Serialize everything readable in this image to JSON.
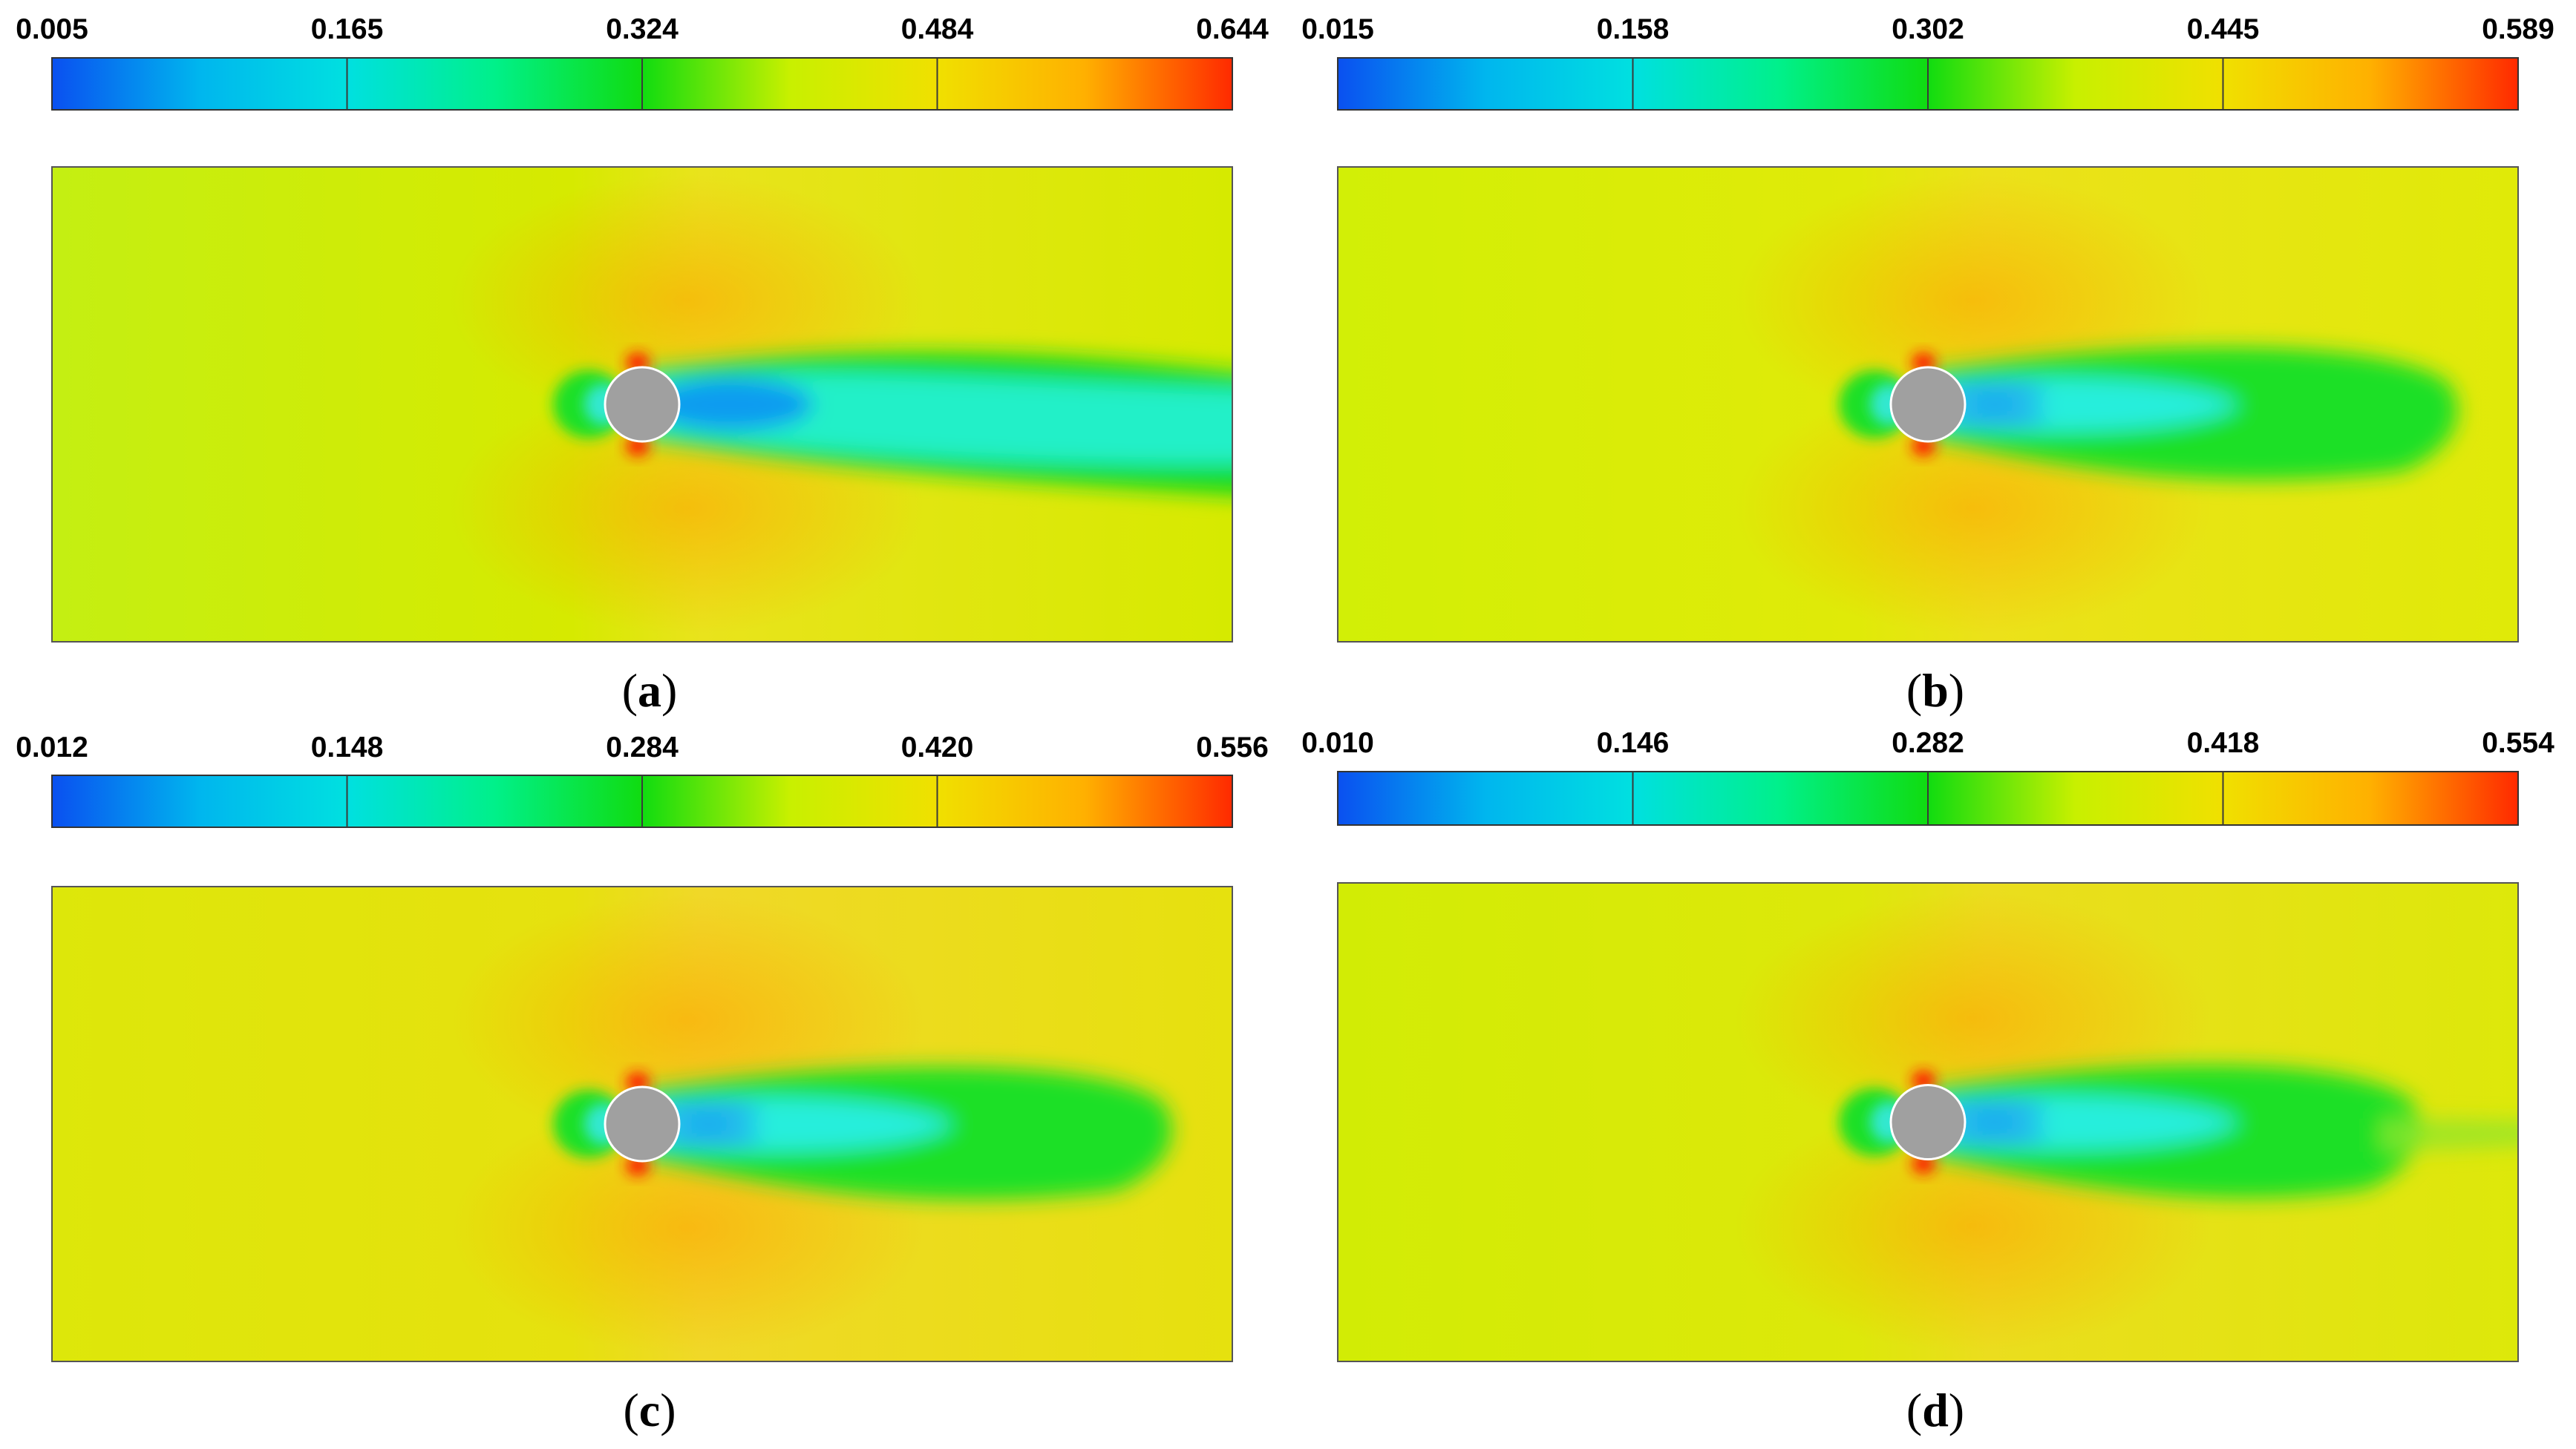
{
  "figure": {
    "panels": [
      {
        "id": "a",
        "label": "a",
        "colorbar": {
          "ticks": [
            "0.005",
            "0.165",
            "0.324",
            "0.484",
            "0.644"
          ]
        },
        "field": {
          "base": "#d6ea00",
          "upstream": "#c4ef12",
          "downstream": "#e9e31c",
          "wake_color": "#1ef2a3",
          "wake_style": "long"
        }
      },
      {
        "id": "b",
        "label": "b",
        "colorbar": {
          "ticks": [
            "0.015",
            "0.158",
            "0.302",
            "0.445",
            "0.589"
          ]
        },
        "field": {
          "base": "#e0ea08",
          "upstream": "#d2ef06",
          "downstream": "#ece11a",
          "wake_color": "#1fe028",
          "wake_style": "bulb"
        }
      },
      {
        "id": "c",
        "label": "c",
        "colorbar": {
          "ticks": [
            "0.012",
            "0.148",
            "0.284",
            "0.420",
            "0.556"
          ]
        },
        "field": {
          "base": "#e6e10e",
          "upstream": "#dde70a",
          "downstream": "#f0d828",
          "wake_color": "#1fe028",
          "wake_style": "bulb"
        }
      },
      {
        "id": "d",
        "label": "d",
        "colorbar": {
          "ticks": [
            "0.010",
            "0.146",
            "0.282",
            "0.418",
            "0.554"
          ]
        },
        "field": {
          "base": "#dde80a",
          "upstream": "#d2ec05",
          "downstream": "#ebdd1e",
          "wake_color": "#1fe028",
          "wake_style": "tail"
        }
      }
    ],
    "cylinder_color": "#a0a0a0",
    "colormap": [
      "#0a50f0",
      "#00b6ee",
      "#00e0e0",
      "#00f08a",
      "#10dc10",
      "#c8f000",
      "#f0e000",
      "#ffb000",
      "#ff2a00"
    ]
  }
}
